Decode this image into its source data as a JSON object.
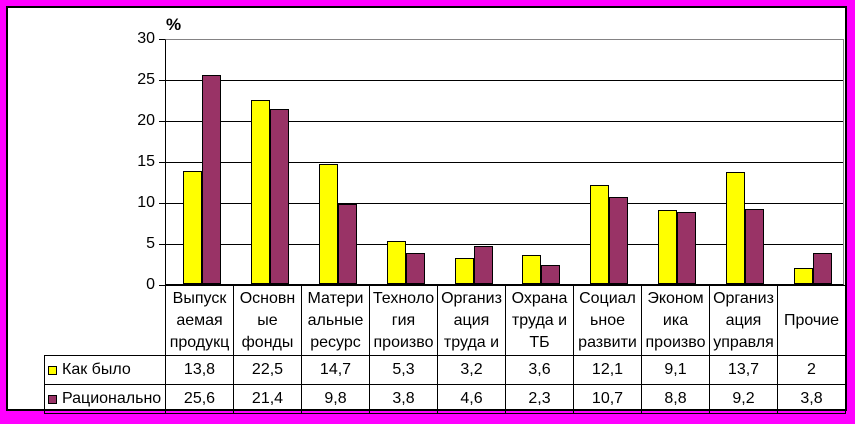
{
  "frame": {
    "border_color": "#FF00FF",
    "inner_border_color": "#000000",
    "background": "#FFFFFF"
  },
  "chart_data": {
    "type": "bar",
    "title": "",
    "xlabel": "",
    "ylabel": "%",
    "ylim": [
      0,
      30
    ],
    "ytick_step": 5,
    "yticks": [
      "30",
      "25",
      "20",
      "15",
      "10",
      "5",
      "0"
    ],
    "grid": true,
    "legend_position": "table-left",
    "categories": [
      "Выпуск\nаемая\nпродукц",
      "Основн\nые\nфонды",
      "Матери\nальные\nресурс",
      "Техноло\nгия\nпроизво",
      "Организ\nация\nтруда и",
      "Охрана\nтруда и\nТБ",
      "Социал\nьное\nразвити",
      "Эконом\nика\nпроизво",
      "Организ\nация\nуправля",
      "Прочие"
    ],
    "series": [
      {
        "name": "Как было",
        "color": "#FFFF00",
        "values": [
          13.8,
          22.5,
          14.7,
          5.3,
          3.2,
          3.6,
          12.1,
          9.1,
          13.7,
          2
        ],
        "display": [
          "13,8",
          "22,5",
          "14,7",
          "5,3",
          "3,2",
          "3,6",
          "12,1",
          "9,1",
          "13,7",
          "2"
        ]
      },
      {
        "name": "Рационально",
        "color": "#993366",
        "values": [
          25.6,
          21.4,
          9.8,
          3.8,
          4.6,
          2.3,
          10.7,
          8.8,
          9.2,
          3.8
        ],
        "display": [
          "25,6",
          "21,4",
          "9,8",
          "3,8",
          "4,6",
          "2,3",
          "10,7",
          "8,8",
          "9,2",
          "3,8"
        ]
      }
    ],
    "colors": {
      "gridline": "#000000",
      "plot_border": "#848284",
      "axis": "#000000",
      "text": "#000000"
    }
  }
}
